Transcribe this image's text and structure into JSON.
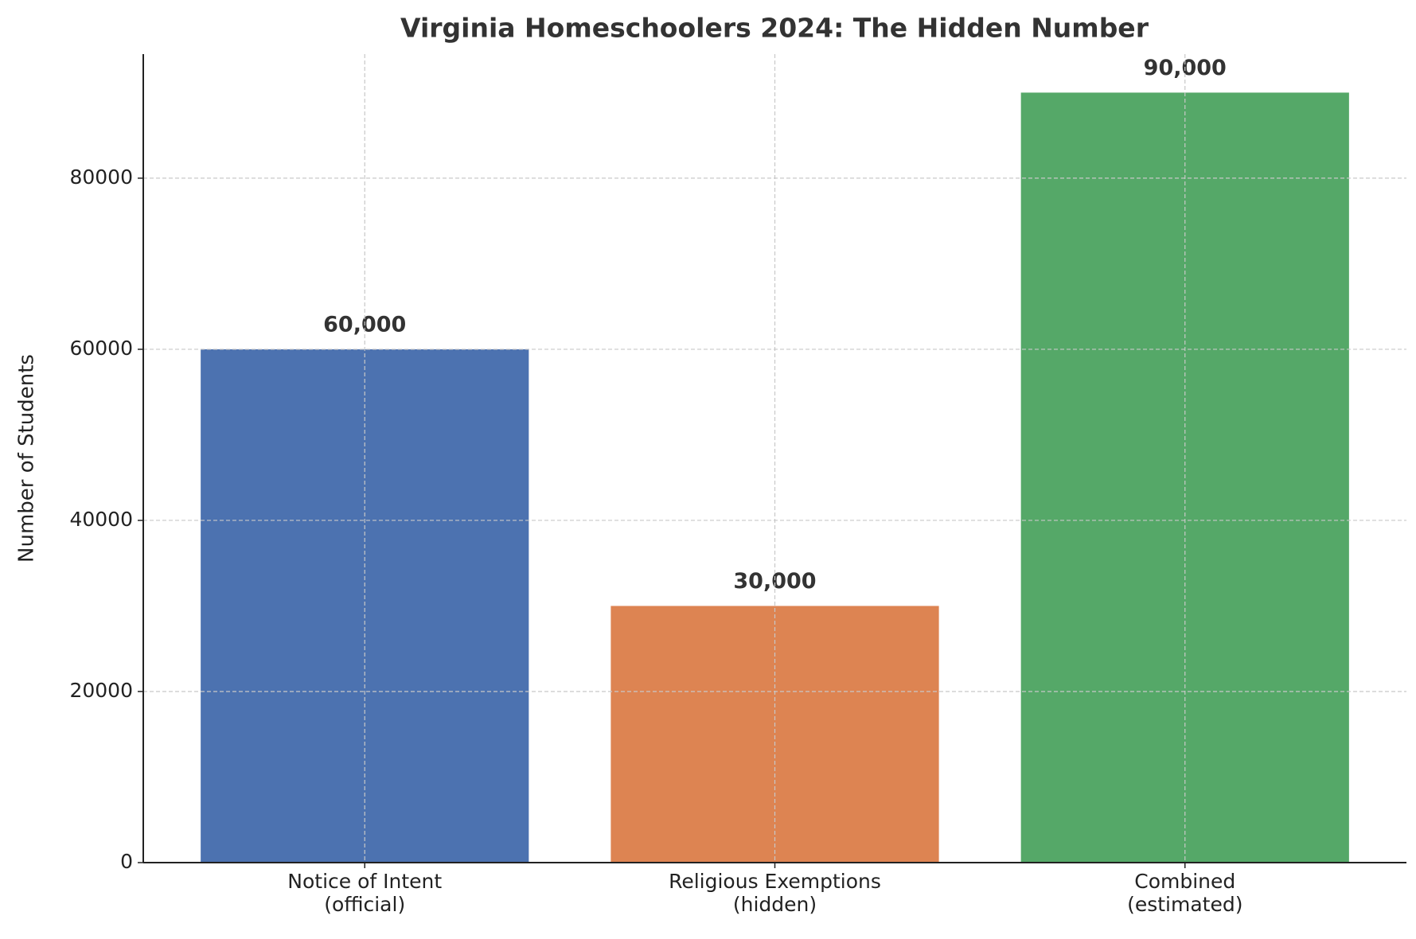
{
  "chart_data": {
    "type": "bar",
    "title": "Virginia Homeschoolers 2024: The Hidden Number",
    "y_label": "Number of Students",
    "categories": [
      "Notice of Intent\n(official)",
      "Religious Exemptions\n(hidden)",
      "Combined\n(estimated)"
    ],
    "values": [
      60000,
      30000,
      90000
    ],
    "value_labels": [
      "60,000",
      "30,000",
      "90,000"
    ],
    "colors": [
      "#4c72b0",
      "#dd8452",
      "#55a868"
    ],
    "ylim": [
      0,
      94500
    ],
    "yticks": [
      0,
      20000,
      40000,
      60000,
      80000
    ],
    "grid": true
  }
}
